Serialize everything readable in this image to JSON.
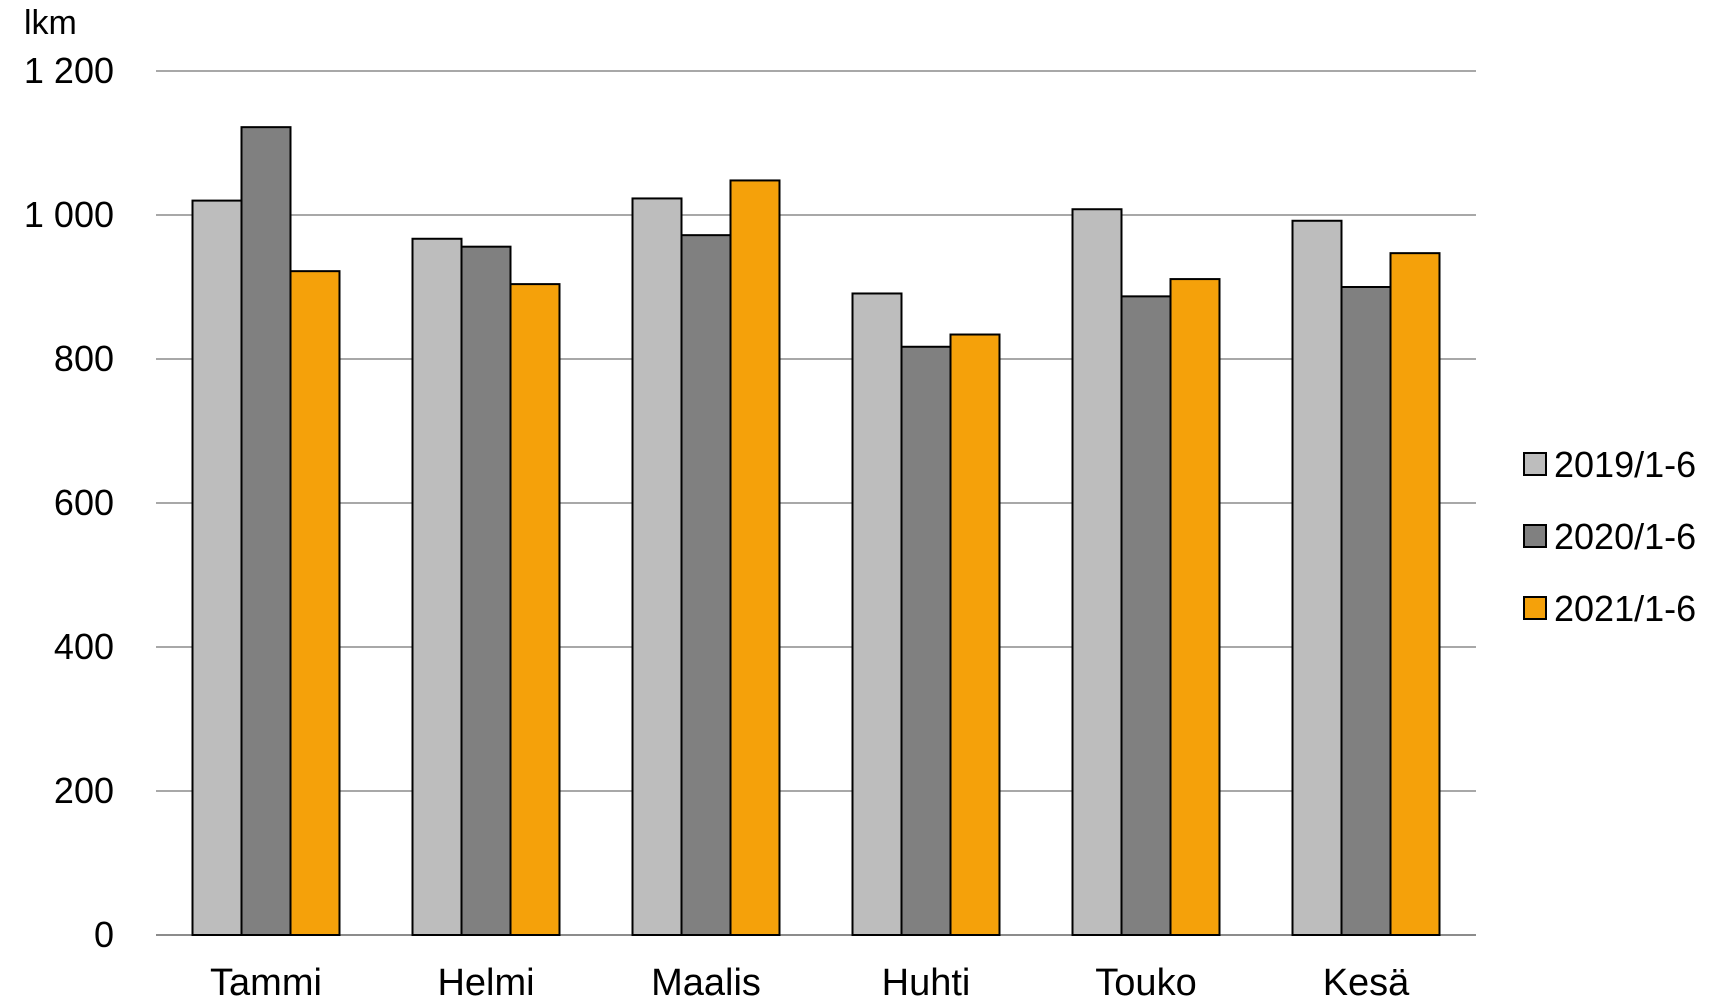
{
  "chart_data": {
    "type": "bar",
    "title": "",
    "unit_label": "lkm",
    "xlabel": "",
    "ylabel": "",
    "categories": [
      "Tammi",
      "Helmi",
      "Maalis",
      "Huhti",
      "Touko",
      "Kesä"
    ],
    "series": [
      {
        "name": "2019/1-6",
        "color": "#bdbdbd",
        "values": [
          1020,
          967,
          1023,
          891,
          1008,
          992
        ]
      },
      {
        "name": "2020/1-6",
        "color": "#808080",
        "values": [
          1122,
          956,
          972,
          817,
          887,
          900
        ]
      },
      {
        "name": "2021/1-6",
        "color": "#f5a10a",
        "values": [
          922,
          904,
          1048,
          834,
          911,
          947
        ]
      }
    ],
    "ylim": [
      0,
      1200
    ],
    "yticks": [
      0,
      200,
      400,
      600,
      800,
      1000,
      1200
    ],
    "ytick_labels": [
      "0",
      "200",
      "400",
      "600",
      "800",
      "1 000",
      "1 200"
    ],
    "grid": true,
    "legend_position": "right"
  }
}
